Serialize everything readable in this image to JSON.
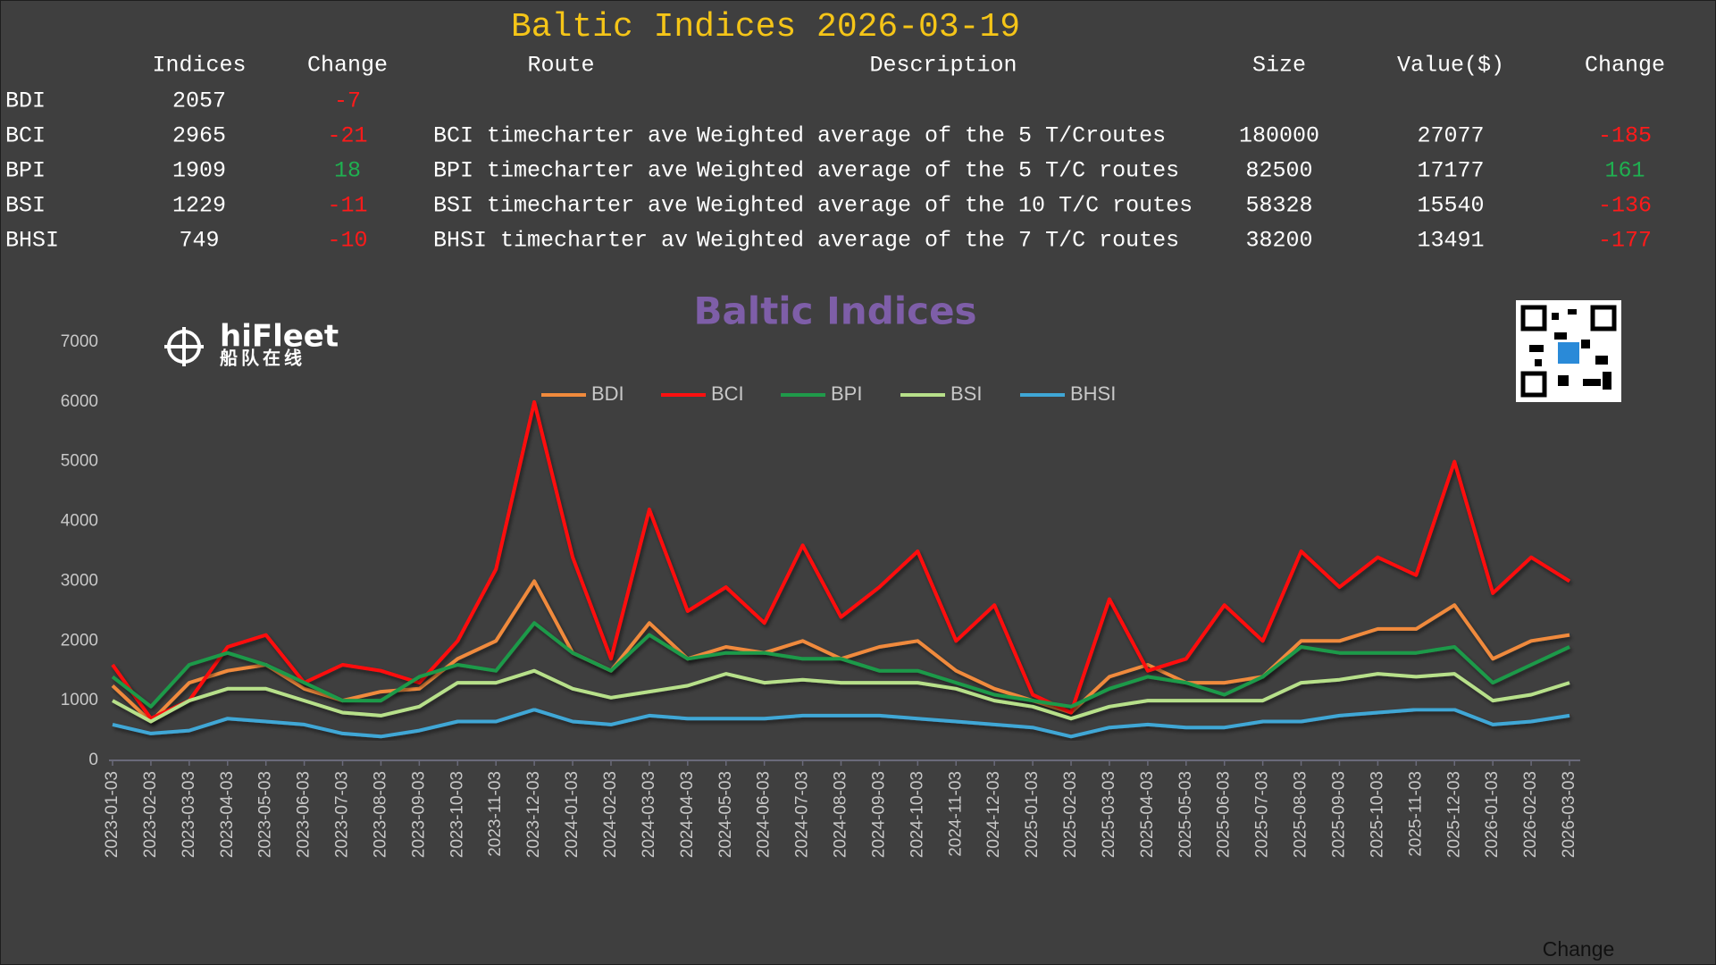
{
  "header": {
    "title": "Baltic Indices 2026-03-19"
  },
  "table": {
    "columns": [
      "Indices",
      "Change",
      "Route",
      "Description",
      "Size",
      "Value($)",
      "Change"
    ],
    "rows": [
      [
        "BDI",
        2057,
        -7
      ],
      [
        "BCI",
        2965,
        -21,
        "BCI timecharter ave",
        "Weighted average of the 5 T/Croutes",
        180000,
        27077,
        -185
      ],
      [
        "BPI",
        1909,
        18,
        "BPI timecharter ave",
        "Weighted average of the 5 T/C routes",
        82500,
        17177,
        161
      ],
      [
        "BSI",
        1229,
        -11,
        "BSI timecharter ave",
        "Weighted average of the 10 T/C routes",
        58328,
        15540,
        -136
      ],
      [
        "BHSI",
        749,
        -10,
        "BHSI timecharter av",
        "Weighted average of the 7 T/C routes",
        38200,
        13491,
        -177
      ]
    ]
  },
  "logo": {
    "name": "hiFleet",
    "subtitle": "船队在线"
  },
  "footer_label": "Change",
  "chart_data": {
    "type": "line",
    "title": "Baltic Indices",
    "legend": "top",
    "categories": [
      "2023-01-03",
      "2023-02-03",
      "2023-03-03",
      "2023-04-03",
      "2023-05-03",
      "2023-06-03",
      "2023-07-03",
      "2023-08-03",
      "2023-09-03",
      "2023-10-03",
      "2023-11-03",
      "2023-12-03",
      "2024-01-03",
      "2024-02-03",
      "2024-03-03",
      "2024-04-03",
      "2024-05-03",
      "2024-06-03",
      "2024-07-03",
      "2024-08-03",
      "2024-09-03",
      "2024-10-03",
      "2024-11-03",
      "2024-12-03",
      "2025-01-03",
      "2025-02-03",
      "2025-03-03",
      "2025-04-03",
      "2025-05-03",
      "2025-06-03",
      "2025-07-03",
      "2025-08-03",
      "2025-09-03",
      "2025-10-03",
      "2025-11-03",
      "2025-12-03",
      "2026-01-03",
      "2026-02-03",
      "2026-03-03"
    ],
    "series": [
      {
        "name": "BDI",
        "color": "#f08a3c",
        "values": [
          1250,
          650,
          1300,
          1500,
          1600,
          1200,
          1000,
          1150,
          1200,
          1700,
          2000,
          3000,
          1800,
          1500,
          2300,
          1700,
          1900,
          1800,
          2000,
          1700,
          1900,
          2000,
          1500,
          1200,
          1000,
          800,
          1400,
          1600,
          1300,
          1300,
          1400,
          2000,
          2000,
          2200,
          2200,
          2600,
          1700,
          2000,
          2100
        ]
      },
      {
        "name": "BCI",
        "color": "#ff1010",
        "values": [
          1600,
          700,
          1000,
          1900,
          2100,
          1300,
          1600,
          1500,
          1300,
          2000,
          3200,
          6000,
          3400,
          1700,
          4200,
          2500,
          2900,
          2300,
          3600,
          2400,
          2900,
          3500,
          2000,
          2600,
          1100,
          800,
          2700,
          1500,
          1700,
          2600,
          2000,
          3500,
          2900,
          3400,
          3100,
          5000,
          2800,
          3400,
          3000
        ]
      },
      {
        "name": "BPI",
        "color": "#1f9a4a",
        "values": [
          1400,
          900,
          1600,
          1800,
          1600,
          1300,
          1000,
          1000,
          1400,
          1600,
          1500,
          2300,
          1800,
          1500,
          2100,
          1700,
          1800,
          1800,
          1700,
          1700,
          1500,
          1500,
          1300,
          1100,
          1000,
          900,
          1200,
          1400,
          1300,
          1100,
          1400,
          1900,
          1800,
          1800,
          1800,
          1900,
          1300,
          1600,
          1900
        ]
      },
      {
        "name": "BSI",
        "color": "#b7e08a",
        "values": [
          1000,
          650,
          1000,
          1200,
          1200,
          1000,
          800,
          750,
          900,
          1300,
          1300,
          1500,
          1200,
          1050,
          1150,
          1250,
          1450,
          1300,
          1350,
          1300,
          1300,
          1300,
          1200,
          1000,
          900,
          700,
          900,
          1000,
          1000,
          1000,
          1000,
          1300,
          1350,
          1450,
          1400,
          1450,
          1000,
          1100,
          1300
        ]
      },
      {
        "name": "BHSI",
        "color": "#3fa7d6",
        "values": [
          600,
          450,
          500,
          700,
          650,
          600,
          450,
          400,
          500,
          650,
          650,
          850,
          650,
          600,
          750,
          700,
          700,
          700,
          750,
          750,
          750,
          700,
          650,
          600,
          550,
          400,
          550,
          600,
          550,
          550,
          650,
          650,
          750,
          800,
          850,
          850,
          600,
          650,
          750
        ]
      }
    ],
    "ylim": [
      0,
      7000
    ],
    "yticks": [
      0,
      1000,
      2000,
      3000,
      4000,
      5000,
      6000,
      7000
    ]
  }
}
